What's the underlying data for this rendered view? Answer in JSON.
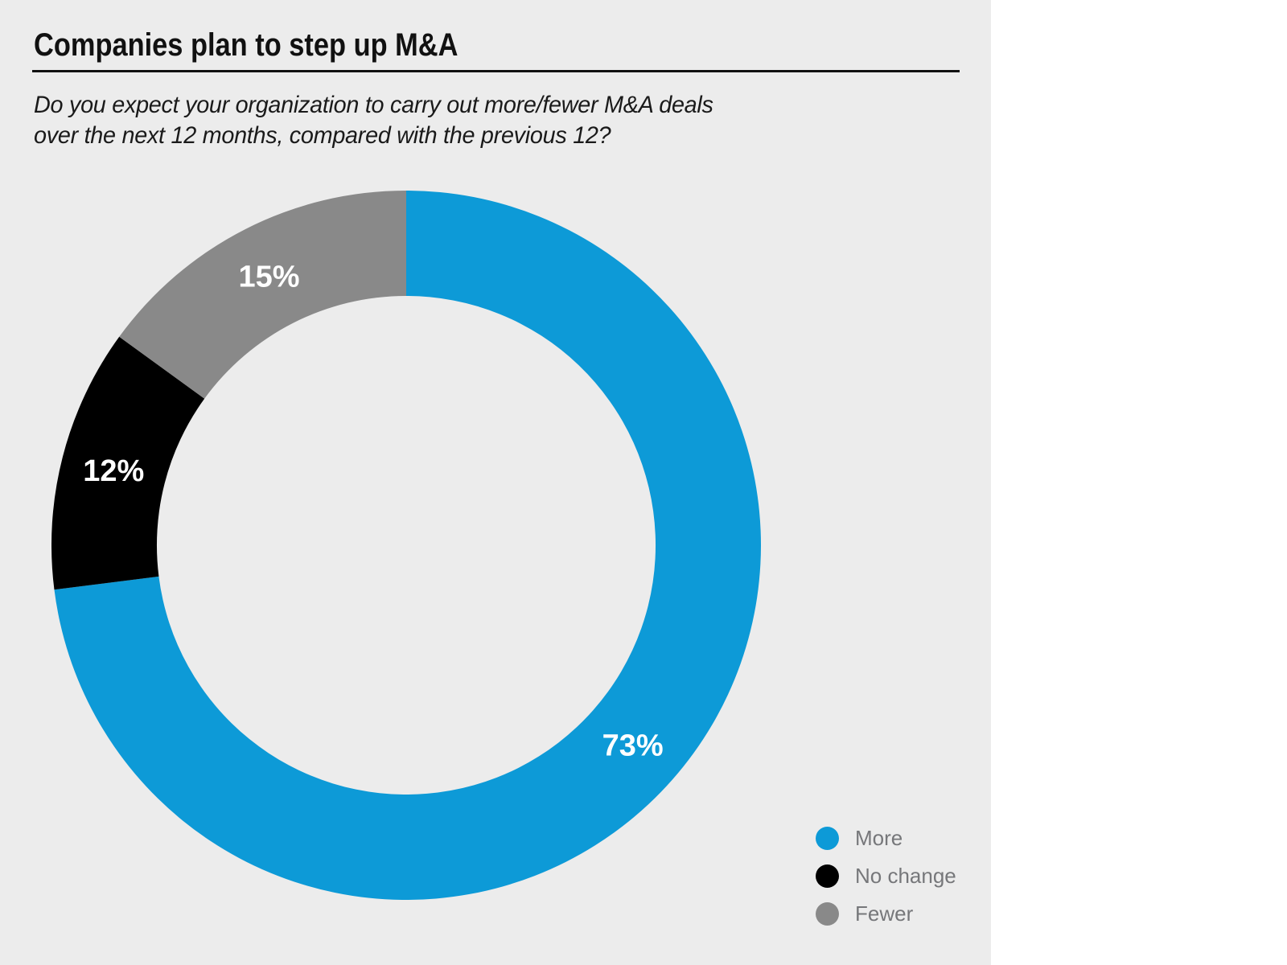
{
  "theme": {
    "background": "#ececec",
    "panel_right": "#ffffff",
    "title_color": "#111111",
    "subtitle_color": "#1a1a1a",
    "rule_color": "#111111",
    "legend_text": "#76777a"
  },
  "header": {
    "title": "Companies plan to step up M&A",
    "subtitle_lines": [
      "Do you expect your organization to carry out more/fewer M&A deals",
      "over the next 12 months, compared with the previous 12?"
    ]
  },
  "chart_data": {
    "type": "pie",
    "subtype": "donut",
    "title": "Companies plan to step up M&A",
    "subtitle": "Do you expect your organization to carry out more/fewer M&A deals over the next 12 months, compared with the previous 12?",
    "categories": [
      "More",
      "No change",
      "Fewer"
    ],
    "values": [
      73,
      12,
      15
    ],
    "data_labels": [
      "73%",
      "12%",
      "15%"
    ],
    "colors": [
      "#0d9ad7",
      "#000000",
      "#898989"
    ],
    "start_angle_deg": 0,
    "direction": "clockwise",
    "inner_radius_ratio": 0.703,
    "data_label_color": "#ffffff",
    "legend_position": "bottom-right",
    "legend_entries": [
      "More",
      "No change",
      "Fewer"
    ]
  }
}
